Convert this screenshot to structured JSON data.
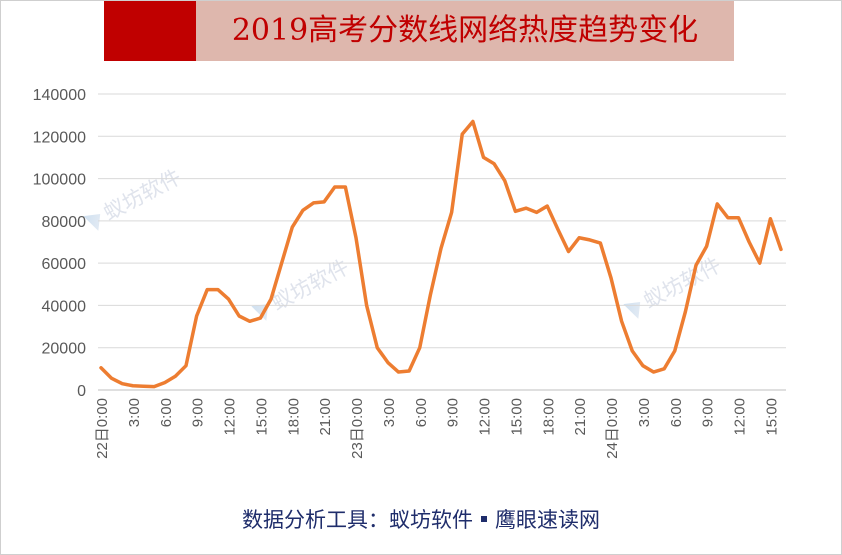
{
  "title": "2019高考分数线网络热度趋势变化",
  "footer": {
    "source_label": "数据分析工具：蚁坊软件",
    "separator_icon": "square-bullet-icon",
    "brand": "鹰眼速读网"
  },
  "watermark": "蚁坊软件",
  "colors": {
    "title_block": "#c00000",
    "title_bg": "#deb7ad",
    "title_text": "#c00000",
    "line": "#ed7d31",
    "grid": "#d9d9d9",
    "footer_text": "#1f2d6b"
  },
  "chart_data": {
    "type": "line",
    "title": "2019高考分数线网络热度趋势变化",
    "xlabel": "",
    "ylabel": "",
    "ylim": [
      0,
      140000
    ],
    "yticks": [
      0,
      20000,
      40000,
      60000,
      80000,
      100000,
      120000,
      140000
    ],
    "x_tick_labels": [
      "22日0:00",
      "3:00",
      "6:00",
      "9:00",
      "12:00",
      "15:00",
      "18:00",
      "21:00",
      "23日0:00",
      "3:00",
      "6:00",
      "9:00",
      "12:00",
      "15:00",
      "18:00",
      "21:00",
      "24日0:00",
      "3:00",
      "6:00",
      "9:00",
      "12:00",
      "15:00"
    ],
    "grid": true,
    "legend": "none",
    "series": [
      {
        "values": [
          10500,
          5500,
          3000,
          2000,
          1800,
          1600,
          3500,
          6500,
          11500,
          35000,
          47500,
          47500,
          43000,
          35000,
          32500,
          34000,
          43000,
          60000,
          77000,
          85000,
          88500,
          89000,
          96000,
          96000,
          72000,
          40000,
          20000,
          13000,
          8500,
          9000,
          20000,
          45000,
          67000,
          84000,
          121000,
          127000,
          110000,
          107000,
          99000,
          84500,
          86000,
          84000,
          87000,
          76000,
          65500,
          72000,
          71000,
          69500,
          53000,
          32500,
          18500,
          11500,
          8500,
          10000,
          18500,
          37000,
          59000,
          68000,
          88000,
          81500,
          81500,
          70000,
          60000,
          81000,
          66500
        ]
      }
    ]
  }
}
